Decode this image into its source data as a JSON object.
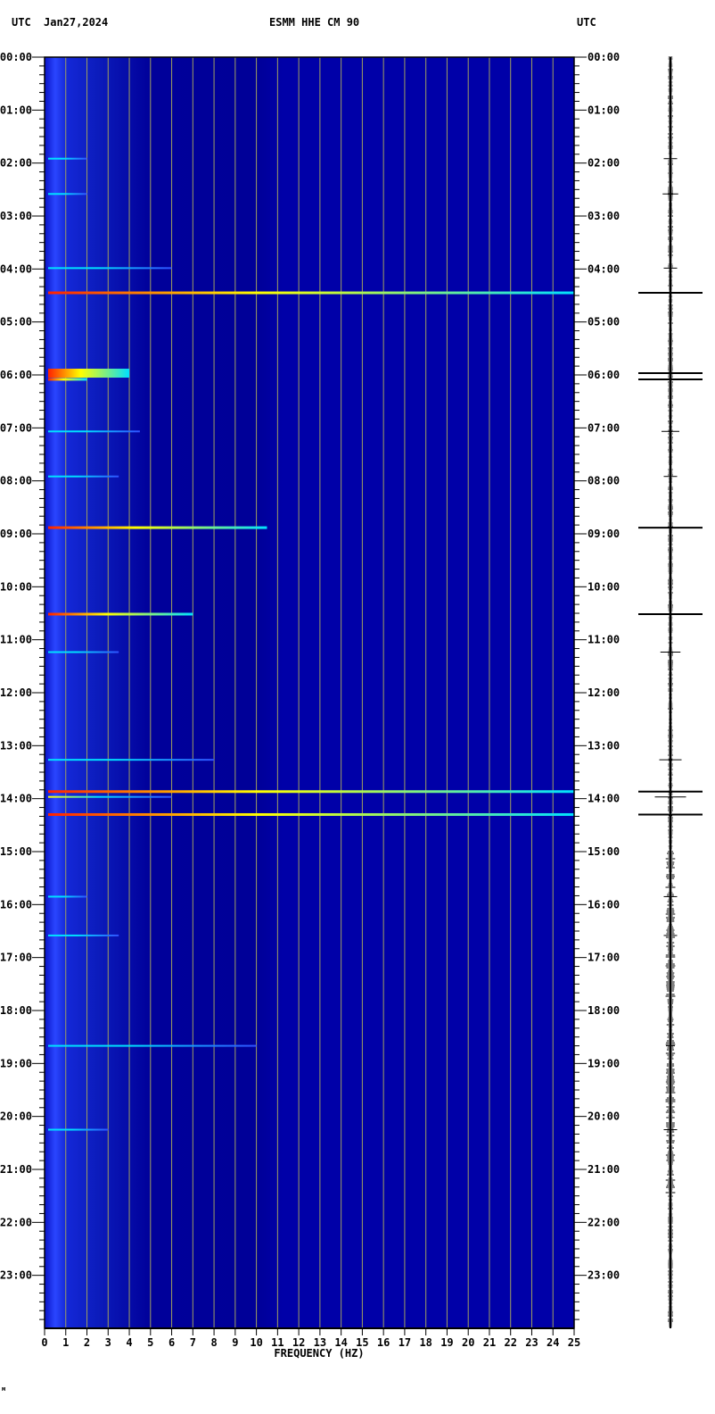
{
  "header": {
    "left_tz": "UTC",
    "date": "Jan27,2024",
    "station": "ESMM HHE CM 90",
    "right_tz": "UTC"
  },
  "footer_mark": "м",
  "chart_data": {
    "type": "heatmap",
    "subtype": "spectrogram with seismogram trace",
    "xlabel": "FREQUENCY (HZ)",
    "xlim": [
      0,
      25
    ],
    "x_ticks": [
      "0",
      "1",
      "2",
      "3",
      "4",
      "5",
      "6",
      "7",
      "8",
      "9",
      "10",
      "11",
      "12",
      "13",
      "14",
      "15",
      "16",
      "17",
      "18",
      "19",
      "20",
      "21",
      "22",
      "23",
      "24",
      "25"
    ],
    "ylim_hours": [
      0,
      24
    ],
    "y_ticks": [
      "00:00",
      "01:00",
      "02:00",
      "03:00",
      "04:00",
      "05:00",
      "06:00",
      "07:00",
      "08:00",
      "09:00",
      "10:00",
      "11:00",
      "12:00",
      "13:00",
      "14:00",
      "15:00",
      "16:00",
      "17:00",
      "18:00",
      "19:00",
      "20:00",
      "21:00",
      "22:00",
      "23:00"
    ],
    "grid": true,
    "colors": {
      "background": "#0000a8",
      "low_freq_noise": "#2a3cff",
      "grid": "#a0a060",
      "strong": "#ff2000",
      "medium": "#ffff00",
      "weak": "#00e0ff"
    },
    "events": [
      {
        "time": "01:55",
        "fmax": 2,
        "intensity": 0.3
      },
      {
        "time": "02:35",
        "fmax": 2,
        "intensity": 0.35
      },
      {
        "time": "03:59",
        "fmax": 6,
        "intensity": 0.3
      },
      {
        "time": "04:27",
        "fmax": 25,
        "intensity": 1.0
      },
      {
        "time": "05:58",
        "fmax": 4,
        "intensity": 0.95
      },
      {
        "time": "06:05",
        "fmax": 2,
        "intensity": 0.9
      },
      {
        "time": "07:04",
        "fmax": 4.5,
        "intensity": 0.4
      },
      {
        "time": "07:55",
        "fmax": 3.5,
        "intensity": 0.3
      },
      {
        "time": "08:53",
        "fmax": 10.5,
        "intensity": 0.9
      },
      {
        "time": "10:31",
        "fmax": 7,
        "intensity": 0.85
      },
      {
        "time": "11:14",
        "fmax": 3.5,
        "intensity": 0.45
      },
      {
        "time": "13:16",
        "fmax": 8,
        "intensity": 0.5
      },
      {
        "time": "13:52",
        "fmax": 25,
        "intensity": 1.0
      },
      {
        "time": "13:58",
        "fmax": 6,
        "intensity": 0.7
      },
      {
        "time": "14:18",
        "fmax": 25,
        "intensity": 0.9
      },
      {
        "time": "15:51",
        "fmax": 2,
        "intensity": 0.3
      },
      {
        "time": "16:35",
        "fmax": 3.5,
        "intensity": 0.3
      },
      {
        "time": "18:40",
        "fmax": 10,
        "intensity": 0.2
      },
      {
        "time": "20:15",
        "fmax": 3,
        "intensity": 0.3
      }
    ]
  }
}
